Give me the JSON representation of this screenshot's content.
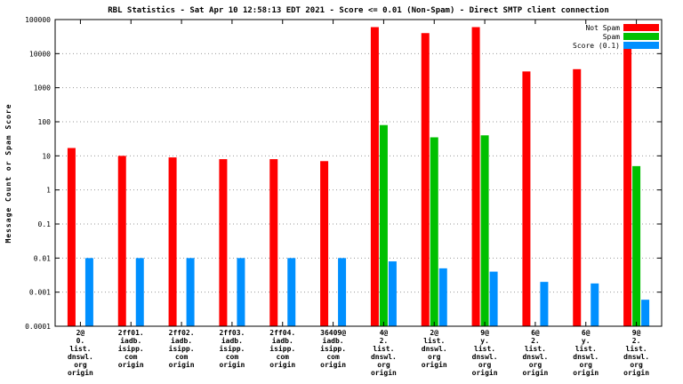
{
  "chart_data": {
    "type": "bar",
    "title": "RBL Statistics - Sat Apr 10 12:58:13 EDT 2021 - Score <= 0.01 (Non-Spam) - Direct SMTP client connection",
    "ylabel": "Message Count or Spam Score",
    "yscale": "log",
    "ylim": [
      0.0001,
      100000
    ],
    "ytick_labels": [
      "100000",
      "10000",
      "1000",
      "100",
      "10",
      "1",
      "0.1",
      "0.01",
      "0.001",
      "0.0001"
    ],
    "grid": true,
    "legend_position": "top-right",
    "categories": [
      [
        "2@",
        "0.",
        "list.",
        "dnswl.",
        "org",
        "origin"
      ],
      [
        "2ff01.",
        "iadb.",
        "isipp.",
        "com",
        "origin"
      ],
      [
        "2ff02.",
        "iadb.",
        "isipp.",
        "com",
        "origin"
      ],
      [
        "2ff03.",
        "iadb.",
        "isipp.",
        "com",
        "origin"
      ],
      [
        "2ff04.",
        "iadb.",
        "isipp.",
        "com",
        "origin"
      ],
      [
        "36409@",
        "iadb.",
        "isipp.",
        "com",
        "origin"
      ],
      [
        "4@",
        "2.",
        "list.",
        "dnswl.",
        "org",
        "origin"
      ],
      [
        "2@",
        "list.",
        "dnswl.",
        "org",
        "origin"
      ],
      [
        "9@",
        "y.",
        "list.",
        "dnswl.",
        "org",
        "origin"
      ],
      [
        "6@",
        "2.",
        "list.",
        "dnswl.",
        "org",
        "origin"
      ],
      [
        "6@",
        "y.",
        "list.",
        "dnswl.",
        "org",
        "origin"
      ],
      [
        "9@",
        "2.",
        "list.",
        "dnswl.",
        "org",
        "origin"
      ]
    ],
    "series": [
      {
        "name": "Not Spam",
        "color": "#ff0000",
        "values": [
          17,
          10,
          9,
          8,
          8,
          7,
          60000,
          40000,
          60000,
          3000,
          3500,
          20000
        ]
      },
      {
        "name": "Spam",
        "color": "#00c000",
        "values": [
          null,
          null,
          null,
          null,
          null,
          null,
          80,
          35,
          40,
          null,
          null,
          5
        ]
      },
      {
        "name": "Score (0.1)",
        "color": "#0090ff",
        "values": [
          0.01,
          0.01,
          0.01,
          0.01,
          0.01,
          0.01,
          0.008,
          0.005,
          0.004,
          0.002,
          0.0018,
          0.0006
        ]
      }
    ]
  }
}
